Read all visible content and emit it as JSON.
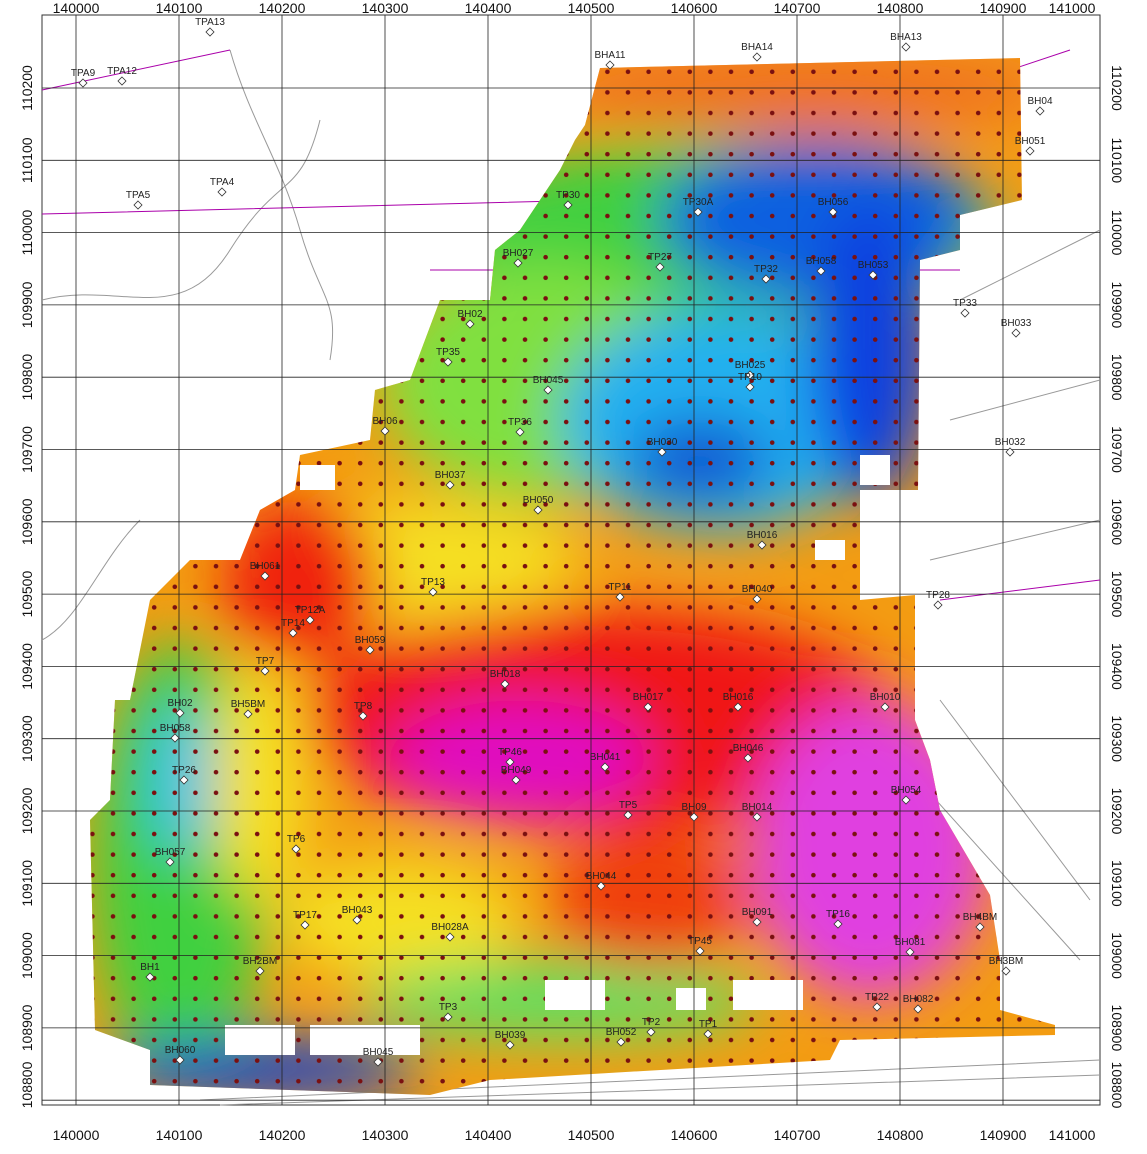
{
  "map": {
    "eastings": [
      140000,
      140100,
      140200,
      140300,
      140400,
      140500,
      140600,
      140700,
      140800,
      140900,
      141000
    ],
    "northings": [
      110200,
      110100,
      110000,
      109900,
      109800,
      109700,
      109600,
      109500,
      109400,
      109300,
      109200,
      109100,
      109000,
      108900,
      108800
    ],
    "stations": [
      "TPA13",
      "BHA11",
      "BHA14",
      "BHA13",
      "TPA9",
      "TPA12",
      "BH04",
      "BH051",
      "TPA5",
      "TPA4",
      "TP30",
      "TP30A",
      "BH056",
      "BH027",
      "TP27",
      "TP32",
      "BH058",
      "BH053",
      "TP33",
      "BH033",
      "BH02",
      "TP35",
      "BH045",
      "BH025",
      "TP10",
      "BH06",
      "TP36",
      "BH030",
      "BH032",
      "BH037",
      "BH050",
      "BH016",
      "BH061",
      "TP13",
      "TP11",
      "BH040",
      "TP28",
      "TP12A",
      "TP14",
      "BH059",
      "TP7",
      "BH018",
      "BH017",
      "BH016",
      "BH010",
      "BH02",
      "BH5BM",
      "TP8",
      "BH058",
      "TP46",
      "BH049",
      "BH041",
      "BH046",
      "TP26",
      "BH054",
      "TP5",
      "BH09",
      "BH014",
      "TP6",
      "BH057",
      "BH044",
      "TP17",
      "BH043",
      "BH028A",
      "BH091",
      "TP16",
      "BH4BM",
      "BH081",
      "TP45",
      "BH1",
      "BH2BM",
      "BH3BM",
      "TP22",
      "BH082",
      "TP3",
      "TP2",
      "TP1",
      "BH052",
      "BH039",
      "BH060",
      "BH045"
    ]
  }
}
